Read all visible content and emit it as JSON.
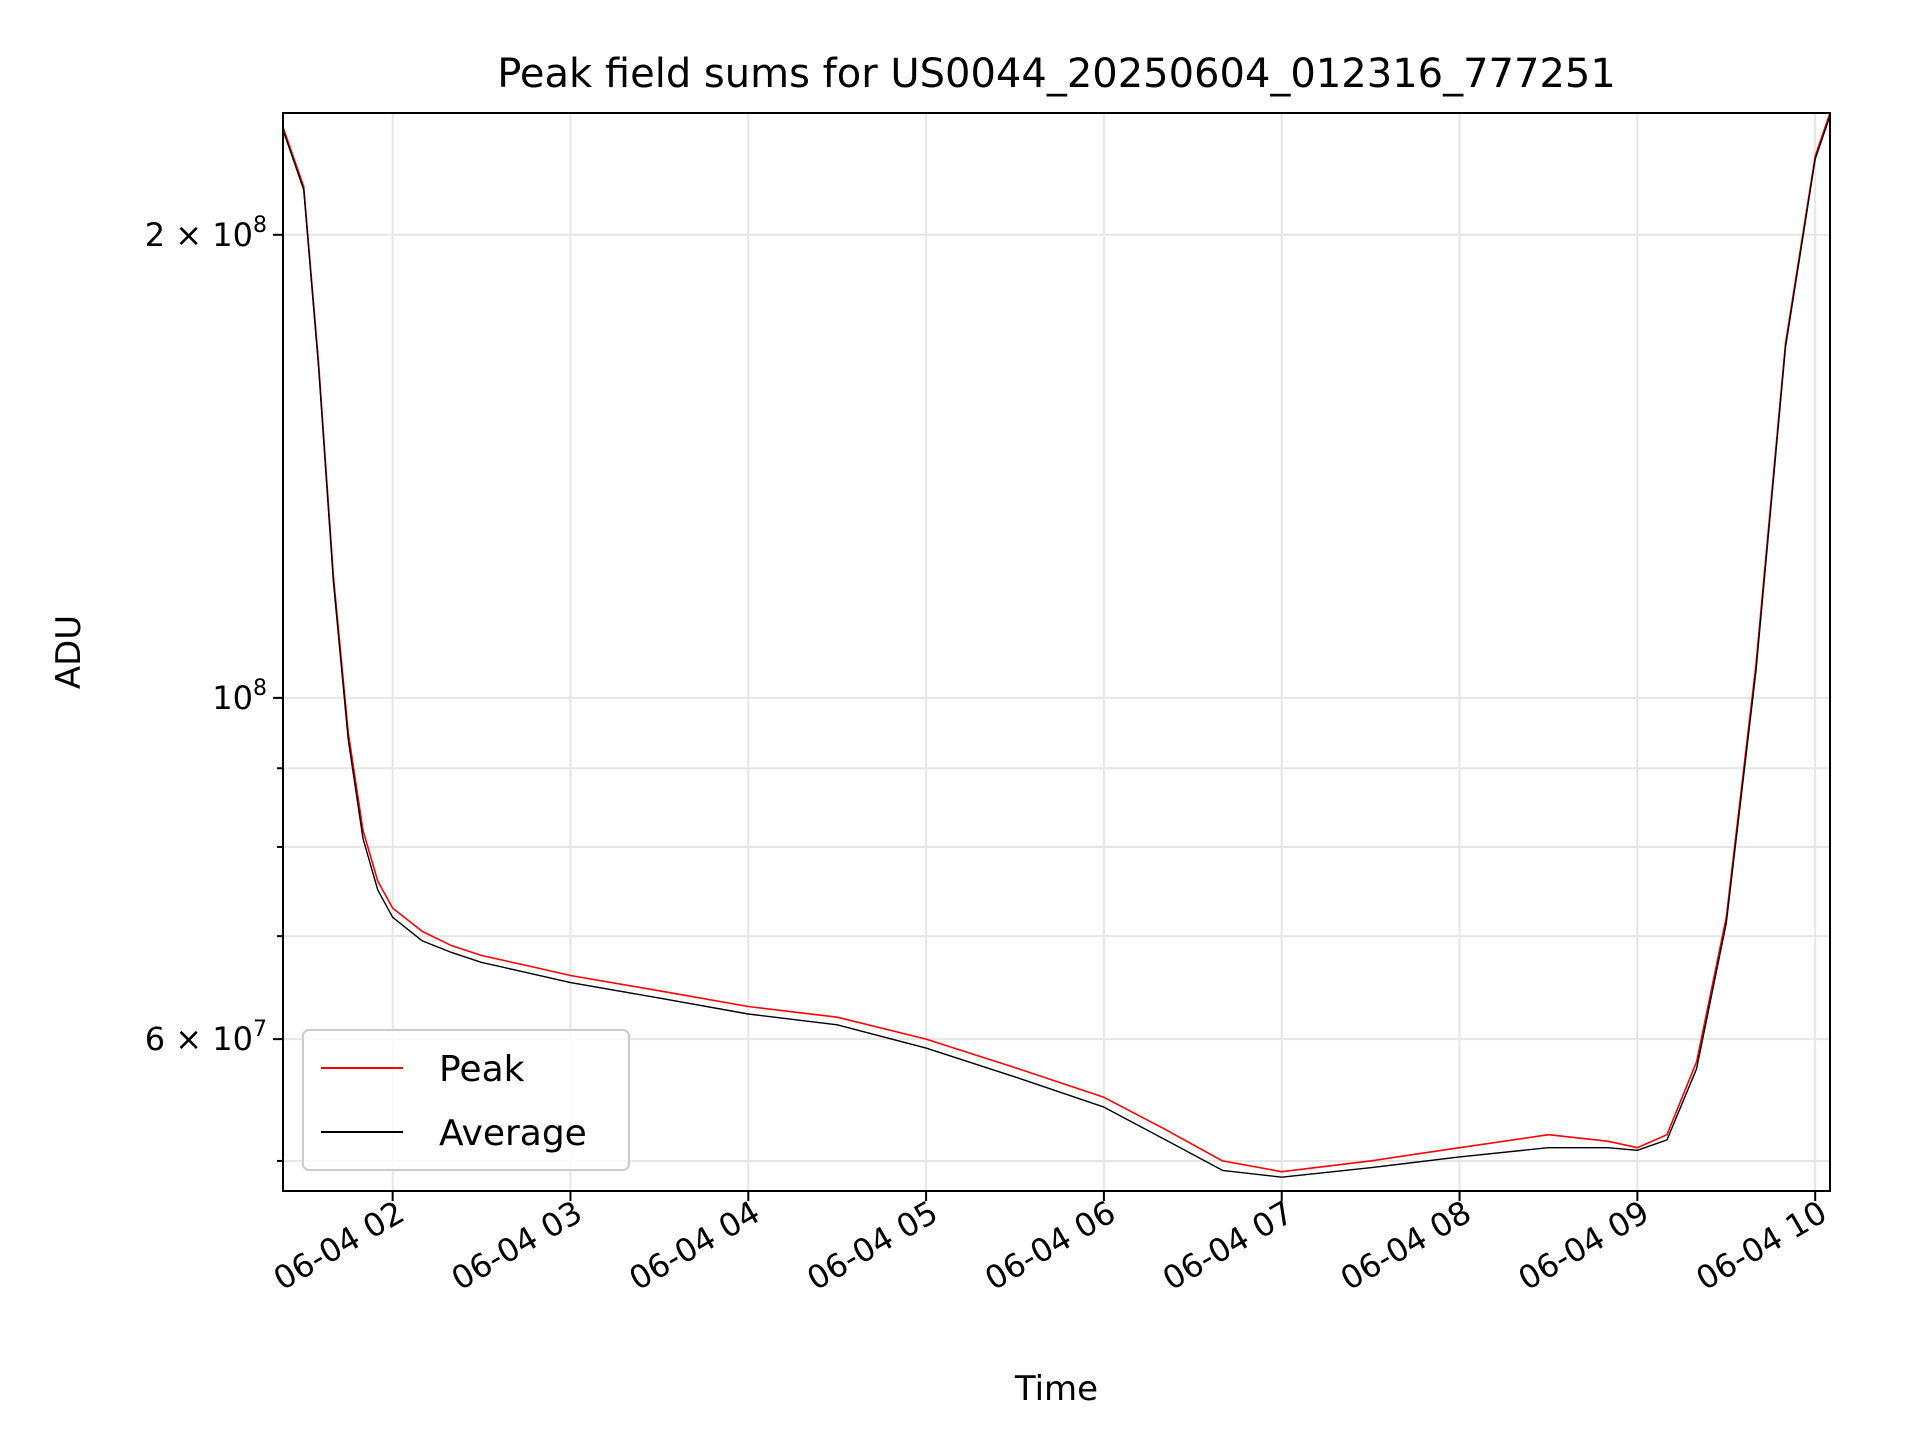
{
  "chart_data": {
    "type": "line",
    "title": "Peak field sums for US0044_20250604_012316_777251",
    "xlabel": "Time",
    "ylabel": "ADU",
    "x_range": [
      "2025-06-04 01:23",
      "2025-06-04 10:05"
    ],
    "ylim": [
      47800000,
      240000000
    ],
    "yscale": "log",
    "grid": true,
    "legend_position": "lower-left",
    "x_ticks": [
      {
        "value": "2025-06-04 02:00",
        "label": "06-04 02"
      },
      {
        "value": "2025-06-04 03:00",
        "label": "06-04 03"
      },
      {
        "value": "2025-06-04 04:00",
        "label": "06-04 04"
      },
      {
        "value": "2025-06-04 05:00",
        "label": "06-04 05"
      },
      {
        "value": "2025-06-04 06:00",
        "label": "06-04 06"
      },
      {
        "value": "2025-06-04 07:00",
        "label": "06-04 07"
      },
      {
        "value": "2025-06-04 08:00",
        "label": "06-04 08"
      },
      {
        "value": "2025-06-04 09:00",
        "label": "06-04 09"
      },
      {
        "value": "2025-06-04 10:00",
        "label": "06-04 10"
      }
    ],
    "y_ticks": [
      {
        "value": 60000000,
        "label": "6 × 10",
        "exp": "7"
      },
      {
        "value": 100000000,
        "label": "10",
        "exp": "8"
      },
      {
        "value": 200000000,
        "label": "2 × 10",
        "exp": "8"
      }
    ],
    "y_minor_ticks": [
      50000000,
      70000000,
      80000000,
      90000000
    ],
    "series": [
      {
        "name": "Peak",
        "color": "#ff0000",
        "x": [
          "2025-06-04 01:23",
          "2025-06-04 01:30",
          "2025-06-04 01:35",
          "2025-06-04 01:40",
          "2025-06-04 01:45",
          "2025-06-04 01:50",
          "2025-06-04 01:55",
          "2025-06-04 02:00",
          "2025-06-04 02:10",
          "2025-06-04 02:20",
          "2025-06-04 02:30",
          "2025-06-04 02:45",
          "2025-06-04 03:00",
          "2025-06-04 03:30",
          "2025-06-04 04:00",
          "2025-06-04 04:30",
          "2025-06-04 05:00",
          "2025-06-04 05:30",
          "2025-06-04 06:00",
          "2025-06-04 06:20",
          "2025-06-04 06:40",
          "2025-06-04 07:00",
          "2025-06-04 07:30",
          "2025-06-04 08:00",
          "2025-06-04 08:30",
          "2025-06-04 08:50",
          "2025-06-04 09:00",
          "2025-06-04 09:10",
          "2025-06-04 09:20",
          "2025-06-04 09:30",
          "2025-06-04 09:40",
          "2025-06-04 09:50",
          "2025-06-04 10:00",
          "2025-06-04 10:05"
        ],
        "values": [
          235000000,
          215000000,
          165000000,
          120000000,
          95000000,
          82000000,
          76000000,
          73000000,
          70500000,
          69000000,
          68000000,
          67000000,
          66000000,
          64500000,
          63000000,
          62000000,
          60000000,
          57500000,
          55000000,
          52500000,
          50000000,
          49200000,
          50000000,
          51000000,
          52000000,
          51500000,
          51000000,
          52000000,
          58000000,
          72000000,
          105000000,
          170000000,
          225000000,
          240000000
        ]
      },
      {
        "name": "Average",
        "color": "#000000",
        "x": [
          "2025-06-04 01:23",
          "2025-06-04 01:30",
          "2025-06-04 01:35",
          "2025-06-04 01:40",
          "2025-06-04 01:45",
          "2025-06-04 01:50",
          "2025-06-04 01:55",
          "2025-06-04 02:00",
          "2025-06-04 02:10",
          "2025-06-04 02:20",
          "2025-06-04 02:30",
          "2025-06-04 02:45",
          "2025-06-04 03:00",
          "2025-06-04 03:30",
          "2025-06-04 04:00",
          "2025-06-04 04:30",
          "2025-06-04 05:00",
          "2025-06-04 05:30",
          "2025-06-04 06:00",
          "2025-06-04 06:20",
          "2025-06-04 06:40",
          "2025-06-04 07:00",
          "2025-06-04 07:30",
          "2025-06-04 08:00",
          "2025-06-04 08:30",
          "2025-06-04 08:50",
          "2025-06-04 09:00",
          "2025-06-04 09:10",
          "2025-06-04 09:20",
          "2025-06-04 09:30",
          "2025-06-04 09:40",
          "2025-06-04 09:50",
          "2025-06-04 10:00",
          "2025-06-04 10:05"
        ],
        "values": [
          234000000,
          214000000,
          164000000,
          119000000,
          94000000,
          81000000,
          75000000,
          72000000,
          69500000,
          68300000,
          67300000,
          66300000,
          65300000,
          63800000,
          62300000,
          61300000,
          59200000,
          56700000,
          54200000,
          51700000,
          49300000,
          48800000,
          49500000,
          50300000,
          51000000,
          51000000,
          50800000,
          51600000,
          57400000,
          71400000,
          104000000,
          169000000,
          224000000,
          239000000
        ]
      }
    ]
  }
}
